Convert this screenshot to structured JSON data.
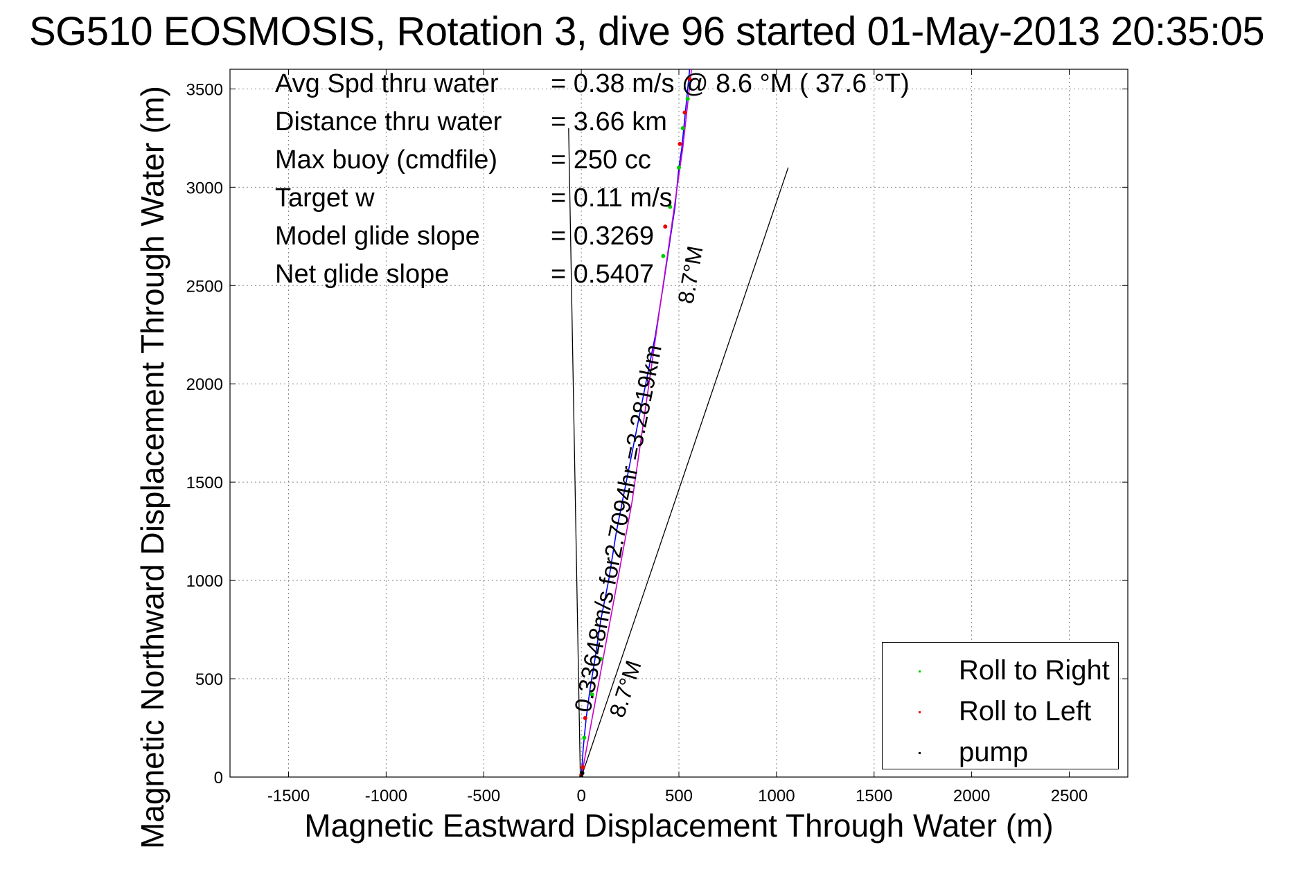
{
  "title": "SG510 EOSMOSIS, Rotation 3, dive 96 started 01-May-2013 20:35:05",
  "info": [
    {
      "label": "Avg Spd thru water",
      "value": "=  0.38 m/s @   8.6 °M ( 37.6 °T)"
    },
    {
      "label": "Distance thru water",
      "value": "=  3.66 km"
    },
    {
      "label": "Max buoy (cmdfile)",
      "value": "= 250 cc"
    },
    {
      "label": "Target w",
      "value": "= 0.11 m/s"
    },
    {
      "label": "Model glide slope",
      "value": "= 0.3269"
    },
    {
      "label": "Net glide slope",
      "value": "= 0.5407"
    }
  ],
  "annotations": {
    "along_track": "0.33648m/s for2.7094hr =3.2819km",
    "heading_low": "8.7°M",
    "heading_high": "8.7°M"
  },
  "legend": [
    {
      "label": "Roll to Right",
      "color": "#00cc00"
    },
    {
      "label": "Roll to Left",
      "color": "#ee0000"
    },
    {
      "label": "pump",
      "color": "#000000"
    }
  ],
  "chart_data": {
    "type": "line",
    "title": "SG510 EOSMOSIS, Rotation 3, dive 96 started 01-May-2013 20:35:05",
    "xlabel": "Magnetic Eastward Displacement Through Water (m)",
    "ylabel": "Magnetic Northward Displacement Through Water (m)",
    "xlim": [
      -1800,
      2800
    ],
    "ylim": [
      0,
      3600
    ],
    "xticks": [
      -1500,
      -1000,
      -500,
      0,
      500,
      1000,
      1500,
      2000,
      2500
    ],
    "yticks": [
      0,
      500,
      1000,
      1500,
      2000,
      2500,
      3000,
      3500
    ],
    "grid": true,
    "legend_position": "bottom-right",
    "series": [
      {
        "style": "track",
        "color": "#0000ff",
        "x": [
          0,
          10,
          25,
          45,
          70,
          100,
          140,
          180,
          230,
          280,
          330,
          380,
          420,
          450,
          480,
          500,
          515,
          530,
          545,
          560
        ],
        "y": [
          0,
          150,
          300,
          450,
          600,
          800,
          1000,
          1250,
          1500,
          1750,
          2000,
          2250,
          2500,
          2700,
          2900,
          3100,
          3200,
          3350,
          3500,
          3650
        ]
      },
      {
        "style": "model",
        "color": "#cc00cc",
        "x": [
          0,
          130,
          260,
          390,
          520,
          570
        ],
        "y": [
          0,
          700,
          1400,
          2300,
          3200,
          3650
        ]
      }
    ],
    "lines": [
      {
        "x": [
          -65,
          -5
        ],
        "y": [
          3300,
          0
        ],
        "color": "#000000"
      },
      {
        "x": [
          0,
          1060
        ],
        "y": [
          0,
          3100
        ],
        "color": "#000000"
      }
    ],
    "points": [
      {
        "name": "Roll to Right",
        "color": "#00cc00",
        "x": [
          15,
          55,
          100,
          420,
          455,
          500,
          520,
          545
        ],
        "y": [
          200,
          420,
          600,
          2650,
          2900,
          3100,
          3300,
          3450
        ]
      },
      {
        "name": "Roll to Left",
        "color": "#ee0000",
        "x": [
          0,
          8,
          20,
          430,
          505,
          530,
          555
        ],
        "y": [
          10,
          50,
          300,
          2800,
          3220,
          3380,
          3550
        ]
      },
      {
        "name": "pump",
        "color": "#000000",
        "x": [
          0,
          5
        ],
        "y": [
          0,
          20
        ]
      }
    ]
  }
}
